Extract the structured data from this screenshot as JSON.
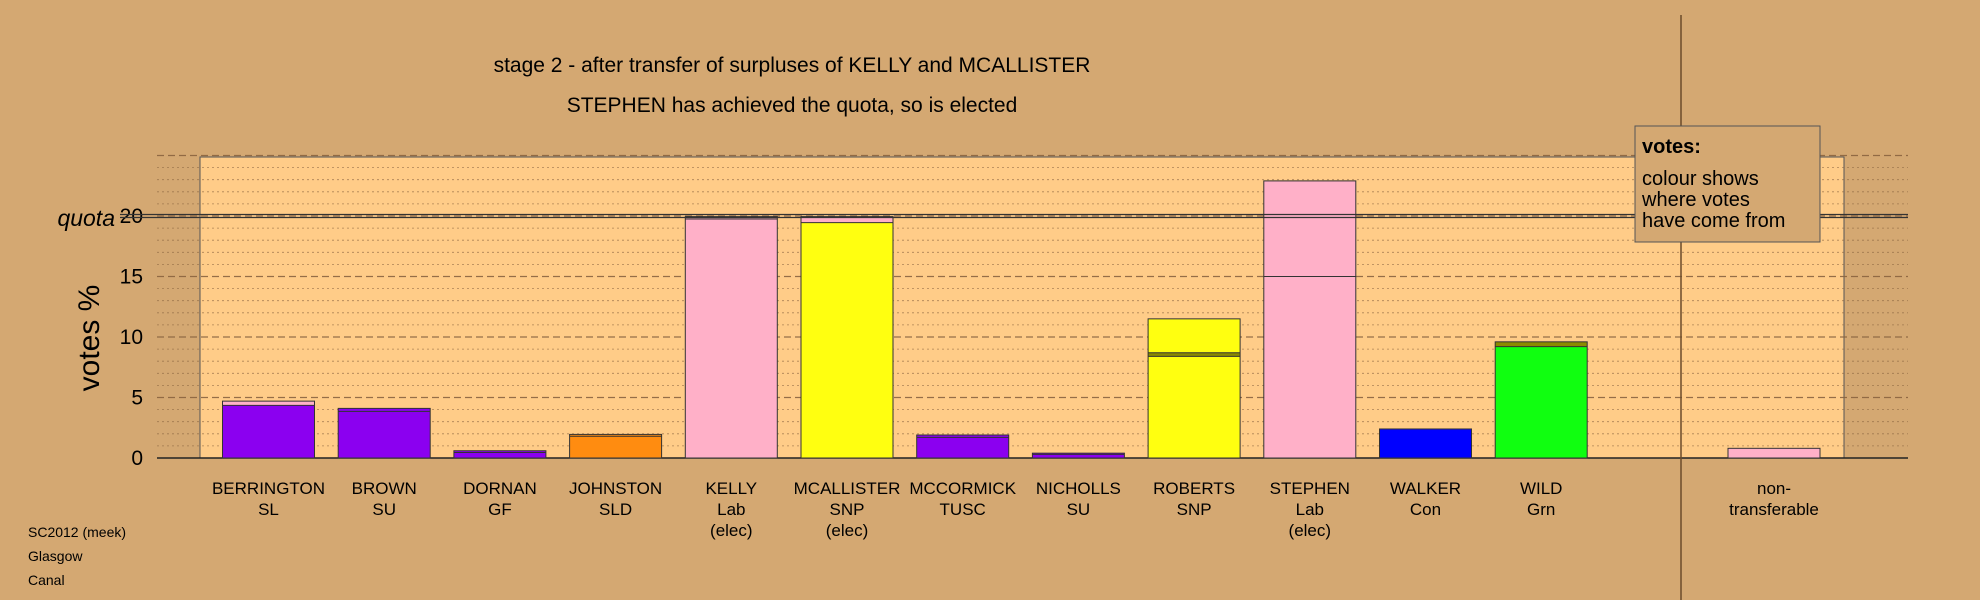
{
  "chart_data": {
    "type": "bar",
    "title": "stage 2 - after transfer of surpluses of KELLY and MCALLISTER",
    "subtitle": "STEPHEN has achieved the quota, so is elected",
    "ylabel": "votes %",
    "quota_label": "quota",
    "quota": 20,
    "ylim": [
      0,
      25
    ],
    "yticks": [
      0,
      5,
      10,
      15,
      20
    ],
    "grid": "dashed",
    "legend": {
      "position": "top-right",
      "title": "votes:",
      "lines": [
        "colour shows",
        "where votes",
        "have come from"
      ]
    },
    "candidates": [
      {
        "name": "BERRINGTON",
        "party": "SL",
        "status": "",
        "segments": [
          {
            "value": 4.35,
            "color": "#8b00f0"
          },
          {
            "value": 0.35,
            "color": "#ffb0c8"
          }
        ]
      },
      {
        "name": "BROWN",
        "party": "SU",
        "status": "",
        "segments": [
          {
            "value": 3.85,
            "color": "#8b00f0"
          },
          {
            "value": 0.25,
            "color": "#8b00f0"
          }
        ]
      },
      {
        "name": "DORNAN",
        "party": "GF",
        "status": "",
        "segments": [
          {
            "value": 0.45,
            "color": "#8b00f0"
          },
          {
            "value": 0.15,
            "color": "#8b00f0"
          }
        ]
      },
      {
        "name": "JOHNSTON",
        "party": "SLD",
        "status": "",
        "segments": [
          {
            "value": 1.8,
            "color": "#ff8c10"
          },
          {
            "value": 0.15,
            "color": "#ff8c10"
          }
        ]
      },
      {
        "name": "KELLY",
        "party": "Lab",
        "status": "(elec)",
        "segments": [
          {
            "value": 19.75,
            "color": "#ffb0c8"
          },
          {
            "value": 0.2,
            "color": "#ffb0c8"
          }
        ]
      },
      {
        "name": "MCALLISTER",
        "party": "SNP",
        "status": "(elec)",
        "segments": [
          {
            "value": 19.45,
            "color": "#ffff10"
          },
          {
            "value": 0.5,
            "color": "#ffb0c8"
          }
        ]
      },
      {
        "name": "MCCORMICK",
        "party": "TUSC",
        "status": "",
        "segments": [
          {
            "value": 1.7,
            "color": "#8b00f0"
          },
          {
            "value": 0.2,
            "color": "#8b00f0"
          }
        ]
      },
      {
        "name": "NICHOLLS",
        "party": "SU",
        "status": "",
        "segments": [
          {
            "value": 0.3,
            "color": "#8b00f0"
          },
          {
            "value": 0.1,
            "color": "#8b00f0"
          }
        ]
      },
      {
        "name": "ROBERTS",
        "party": "SNP",
        "status": "",
        "segments": [
          {
            "value": 8.4,
            "color": "#ffff10"
          },
          {
            "value": 0.3,
            "color": "#8b8b00"
          },
          {
            "value": 2.8,
            "color": "#ffff10"
          }
        ]
      },
      {
        "name": "STEPHEN",
        "party": "Lab",
        "status": "(elec)",
        "segments": [
          {
            "value": 15.0,
            "color": "#ffb0c8"
          },
          {
            "value": 7.9,
            "color": "#ffb0c8"
          }
        ]
      },
      {
        "name": "WALKER",
        "party": "Con",
        "status": "",
        "segments": [
          {
            "value": 2.4,
            "color": "#0000ff"
          }
        ]
      },
      {
        "name": "WILD",
        "party": "Grn",
        "status": "",
        "segments": [
          {
            "value": 9.2,
            "color": "#10ff10"
          },
          {
            "value": 0.4,
            "color": "#8b8b00"
          }
        ]
      }
    ],
    "non_transferable": {
      "label_line1": "non-",
      "label_line2": "transferable",
      "value": 0.8,
      "color": "#ffb0c8"
    }
  },
  "footer": {
    "line1": "SC2012 (meek)",
    "line2": "Glasgow",
    "line3": "Canal"
  },
  "colors": {
    "background": "#d4a872",
    "plot_area": "#ffcc88",
    "grid": "#8a6440"
  }
}
